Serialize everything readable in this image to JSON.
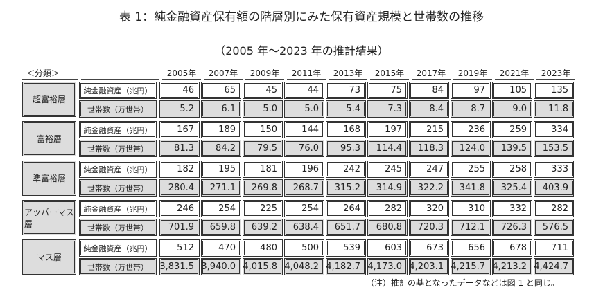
{
  "title": "表 1：純金融資産保有額の階層別にみた保有資産規模と世帯数の推移",
  "subtitle": "（2005 年～2023 年の推計結果）",
  "category_header": "＜分類＞",
  "years": [
    "2005年",
    "2007年",
    "2009年",
    "2011年",
    "2013年",
    "2015年",
    "2017年",
    "2019年",
    "2021年",
    "2023年"
  ],
  "row_labels": {
    "assets": "純金融資産（兆円）",
    "households": "世帯数（万世帯）"
  },
  "groups": [
    {
      "name": "超富裕層",
      "assets": [
        "46",
        "65",
        "45",
        "44",
        "73",
        "75",
        "84",
        "97",
        "105",
        "135"
      ],
      "households": [
        "5.2",
        "6.1",
        "5.0",
        "5.0",
        "5.4",
        "7.3",
        "8.4",
        "8.7",
        "9.0",
        "11.8"
      ]
    },
    {
      "name": "富裕層",
      "assets": [
        "167",
        "189",
        "150",
        "144",
        "168",
        "197",
        "215",
        "236",
        "259",
        "334"
      ],
      "households": [
        "81.3",
        "84.2",
        "79.5",
        "76.0",
        "95.3",
        "114.4",
        "118.3",
        "124.0",
        "139.5",
        "153.5"
      ]
    },
    {
      "name": "準富裕層",
      "assets": [
        "182",
        "195",
        "181",
        "196",
        "242",
        "245",
        "247",
        "255",
        "258",
        "333"
      ],
      "households": [
        "280.4",
        "271.1",
        "269.8",
        "268.7",
        "315.2",
        "314.9",
        "322.2",
        "341.8",
        "325.4",
        "403.9"
      ]
    },
    {
      "name": "アッパーマス層",
      "assets": [
        "246",
        "254",
        "225",
        "254",
        "264",
        "282",
        "320",
        "310",
        "332",
        "282"
      ],
      "households": [
        "701.9",
        "659.8",
        "639.2",
        "638.4",
        "651.7",
        "680.8",
        "720.3",
        "712.1",
        "726.3",
        "576.5"
      ]
    },
    {
      "name": "マス層",
      "assets": [
        "512",
        "470",
        "480",
        "500",
        "539",
        "603",
        "673",
        "656",
        "678",
        "711"
      ],
      "households": [
        "3,831.5",
        "3,940.0",
        "4,015.8",
        "4,048.2",
        "4,182.7",
        "4,173.0",
        "4,203.1",
        "4,215.7",
        "4,213.2",
        "4,424.7"
      ]
    }
  ],
  "note": "（注）推計の基となったデータなどは図 1 と同じ。"
}
